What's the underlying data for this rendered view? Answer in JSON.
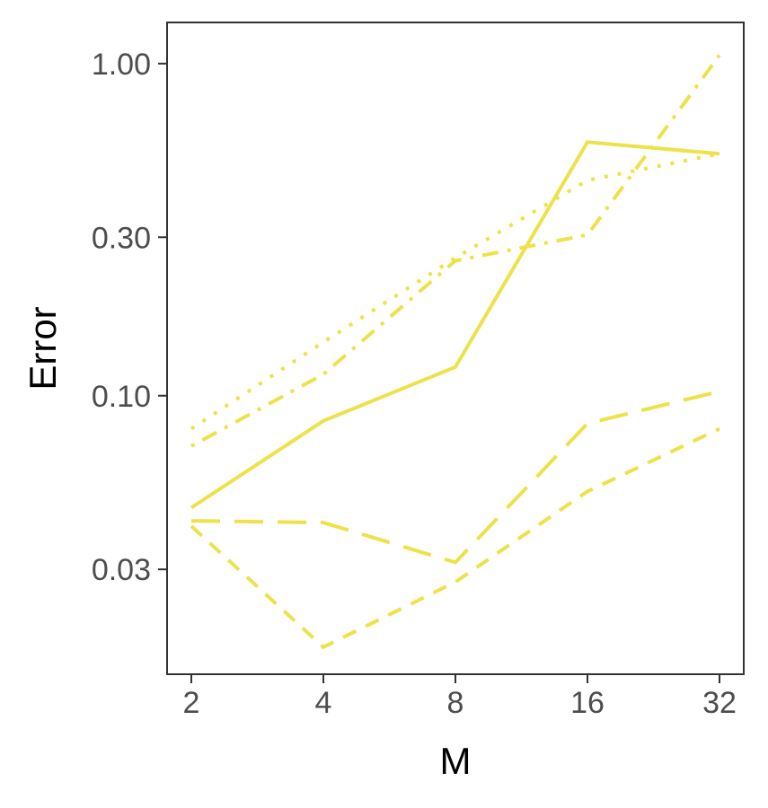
{
  "chart_data": {
    "type": "line",
    "xlabel": "M",
    "ylabel": "Error",
    "x_scale": "log2",
    "y_scale": "log10",
    "x": [
      2,
      4,
      8,
      16,
      32
    ],
    "x_tick_labels": [
      "2",
      "4",
      "8",
      "16",
      "32"
    ],
    "y_ticks": [
      0.03,
      0.1,
      0.3,
      1.0
    ],
    "y_tick_labels": [
      "0.03",
      "0.10",
      "0.30",
      "1.00"
    ],
    "ylim": [
      0.0145,
      1.33
    ],
    "grid": false,
    "legend": "none",
    "color": "#ede24a",
    "series": [
      {
        "linestyle": "solid",
        "values": [
          0.046,
          0.084,
          0.122,
          0.58,
          0.535
        ]
      },
      {
        "linestyle": "longdash",
        "values": [
          0.042,
          0.0415,
          0.0315,
          0.0825,
          0.103
        ]
      },
      {
        "linestyle": "dashed",
        "values": [
          0.0405,
          0.0175,
          0.0275,
          0.0515,
          0.0795
        ]
      },
      {
        "linestyle": "dotted",
        "values": [
          0.0795,
          0.145,
          0.26,
          0.445,
          0.535
        ]
      },
      {
        "linestyle": "dotdash",
        "values": [
          0.0705,
          0.116,
          0.255,
          0.305,
          1.06
        ]
      }
    ]
  }
}
